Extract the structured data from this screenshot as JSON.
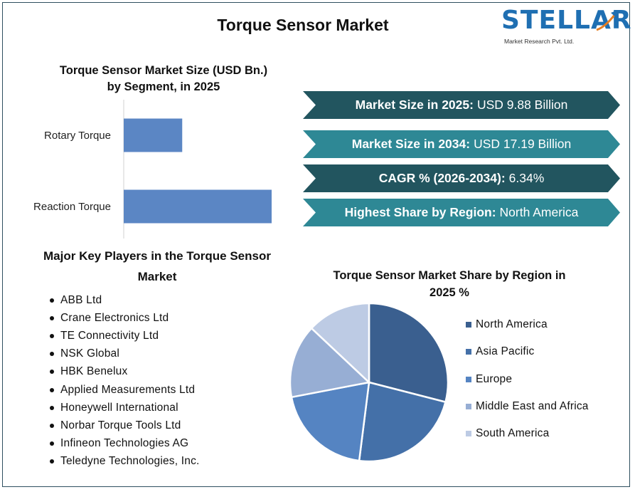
{
  "title": "Torque Sensor Market",
  "logo": {
    "word": "STELLAR",
    "subtitle": "Market Research Pvt. Ltd."
  },
  "bar_title_line1": "Torque Sensor Market Size (USD Bn.)",
  "bar_title_line2": "by Segment, in 2025",
  "banners": [
    {
      "label": "Market Size in 2025:",
      "value": "USD 9.88 Billion",
      "color": "#22555f"
    },
    {
      "label": "Market Size in 2034:",
      "value": "USD 17.19 Billion",
      "color": "#2e8895"
    },
    {
      "label": "CAGR % (2026-2034):",
      "value": "6.34%",
      "color": "#22555f"
    },
    {
      "label": "Highest Share by Region:",
      "value": "North America",
      "color": "#2e8895"
    }
  ],
  "players_title_line1": "Major Key Players in the Torque Sensor",
  "players_title_line2": "Market",
  "players": [
    "ABB Ltd",
    "Crane Electronics Ltd",
    "TE Connectivity Ltd",
    "NSK Global",
    "HBK Benelux",
    "Applied Measurements Ltd",
    "Honeywell International",
    "Norbar Torque Tools Ltd",
    "Infineon Technologies AG",
    "Teledyne Technologies, Inc."
  ],
  "pie_title_line1": "Torque Sensor Market Share by Region in",
  "pie_title_line2": "2025 %",
  "chart_data": [
    {
      "type": "bar",
      "orientation": "horizontal",
      "title": "Torque Sensor Market Size (USD Bn.) by Segment, in 2025",
      "categories": [
        "Rotary Torque",
        "Reaction Torque"
      ],
      "values": [
        2.8,
        7.08
      ],
      "color": "#5b86c4",
      "xlim": [
        0,
        7.08
      ],
      "grid": false,
      "xaxis_ticks_shown": false
    },
    {
      "type": "pie",
      "title": "Torque Sensor Market Share by Region in 2025 %",
      "labels": [
        "North America",
        "Asia Pacific",
        "Europe",
        "Middle East and Africa",
        "South America"
      ],
      "values": [
        29,
        23,
        20,
        15,
        13
      ],
      "colors": [
        "#3a5f8f",
        "#4470a8",
        "#5584c2",
        "#97aed4",
        "#bdcbe4"
      ],
      "legend": "right"
    }
  ]
}
